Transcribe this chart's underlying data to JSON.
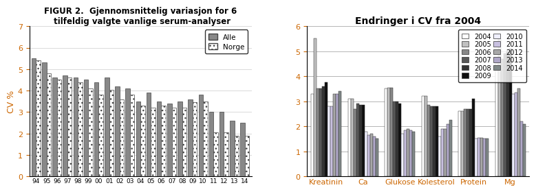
{
  "left_title": "FIGUR 2.  Gjennomsnittelig variasjon for 6\n tilfeldig valgte vanlige serum-analyser",
  "left_ylabel": "CV %",
  "left_ylim": [
    0,
    7
  ],
  "left_yticks": [
    0,
    1,
    2,
    3,
    4,
    5,
    6,
    7
  ],
  "left_categories": [
    "94",
    "95",
    "96",
    "97",
    "98",
    "99",
    "00",
    "01",
    "02",
    "03",
    "04",
    "05",
    "06",
    "07",
    "08",
    "09",
    "10",
    "11",
    "12",
    "13",
    "14"
  ],
  "left_alle": [
    5.5,
    5.3,
    4.6,
    4.7,
    4.6,
    4.5,
    4.4,
    4.6,
    4.2,
    4.1,
    3.5,
    3.9,
    3.5,
    3.4,
    3.5,
    3.6,
    3.8,
    3.0,
    3.0,
    2.6,
    2.5
  ],
  "left_norge": [
    5.4,
    4.8,
    4.5,
    4.6,
    4.4,
    4.1,
    3.8,
    4.05,
    3.6,
    3.8,
    3.3,
    3.2,
    3.3,
    3.2,
    3.2,
    3.45,
    3.5,
    2.05,
    2.05,
    1.9,
    1.9
  ],
  "left_legend_alle": "Alle",
  "left_legend_norge": "Norge",
  "right_title": "Endringer i CV fra 2004",
  "right_ylim": [
    0,
    6
  ],
  "right_yticks": [
    0,
    1,
    2,
    3,
    4,
    5,
    6
  ],
  "right_categories": [
    "Kreatinin",
    "Ca",
    "Glukose",
    "Kolesterol",
    "Protein",
    "Mg"
  ],
  "right_years": [
    "2004",
    "2005",
    "2006",
    "2007",
    "2008",
    "2009",
    "2010",
    "2011",
    "2012",
    "2013",
    "2014"
  ],
  "right_colors": [
    "#ffffff",
    "#c0c0c0",
    "#909090",
    "#606060",
    "#383838",
    "#101010",
    "#f0efff",
    "#c8c0dc",
    "#a0a0b0",
    "#888898",
    "#606870"
  ],
  "right_data": {
    "Kreatinin": [
      3.3,
      5.5,
      3.5,
      3.5,
      3.6,
      3.75,
      2.8,
      2.8,
      3.3,
      3.3,
      3.4
    ],
    "Ca": [
      3.1,
      3.1,
      2.7,
      2.9,
      2.85,
      2.85,
      1.8,
      1.65,
      1.7,
      1.6,
      1.5
    ],
    "Glukose": [
      3.5,
      3.55,
      3.55,
      3.0,
      3.0,
      2.9,
      1.7,
      1.85,
      1.9,
      1.85,
      1.8
    ],
    "Kolesterol": [
      3.2,
      3.2,
      2.85,
      2.8,
      2.8,
      2.8,
      1.6,
      1.9,
      1.9,
      2.1,
      2.25
    ],
    "Protein": [
      2.6,
      2.6,
      2.7,
      2.7,
      2.7,
      3.1,
      1.5,
      1.55,
      1.55,
      1.5,
      1.5
    ],
    "Mg": [
      4.5,
      5.5,
      4.7,
      4.9,
      5.0,
      5.1,
      3.3,
      3.35,
      3.5,
      2.2,
      2.1
    ]
  }
}
